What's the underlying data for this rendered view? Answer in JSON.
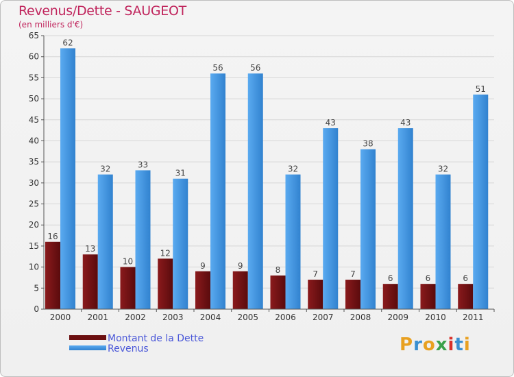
{
  "colors": {
    "title": "#c0245c",
    "dette": "#6b0f10",
    "revenus": "#3b8fd8",
    "legend_text": "#4a57d8"
  },
  "chart_data": {
    "type": "bar",
    "title": "Revenus/Dette - SAUGEOT",
    "subtitle": "(en milliers d'€)",
    "categories": [
      "2000",
      "2001",
      "2002",
      "2003",
      "2004",
      "2005",
      "2006",
      "2007",
      "2008",
      "2009",
      "2010",
      "2011"
    ],
    "series": [
      {
        "name": "Montant de la Dette",
        "values": [
          16,
          13,
          10,
          12,
          9,
          9,
          8,
          7,
          7,
          6,
          6,
          6
        ]
      },
      {
        "name": "Revenus",
        "values": [
          62,
          32,
          33,
          31,
          56,
          56,
          32,
          43,
          38,
          43,
          32,
          51
        ]
      }
    ],
    "ylim": [
      0,
      65
    ],
    "yticks": [
      0,
      5,
      10,
      15,
      20,
      25,
      30,
      35,
      40,
      45,
      50,
      55,
      60,
      65
    ],
    "xlabel": "",
    "ylabel": "",
    "legend_position": "bottom-left",
    "grid": true
  },
  "logo": {
    "text": "Proxiti"
  }
}
